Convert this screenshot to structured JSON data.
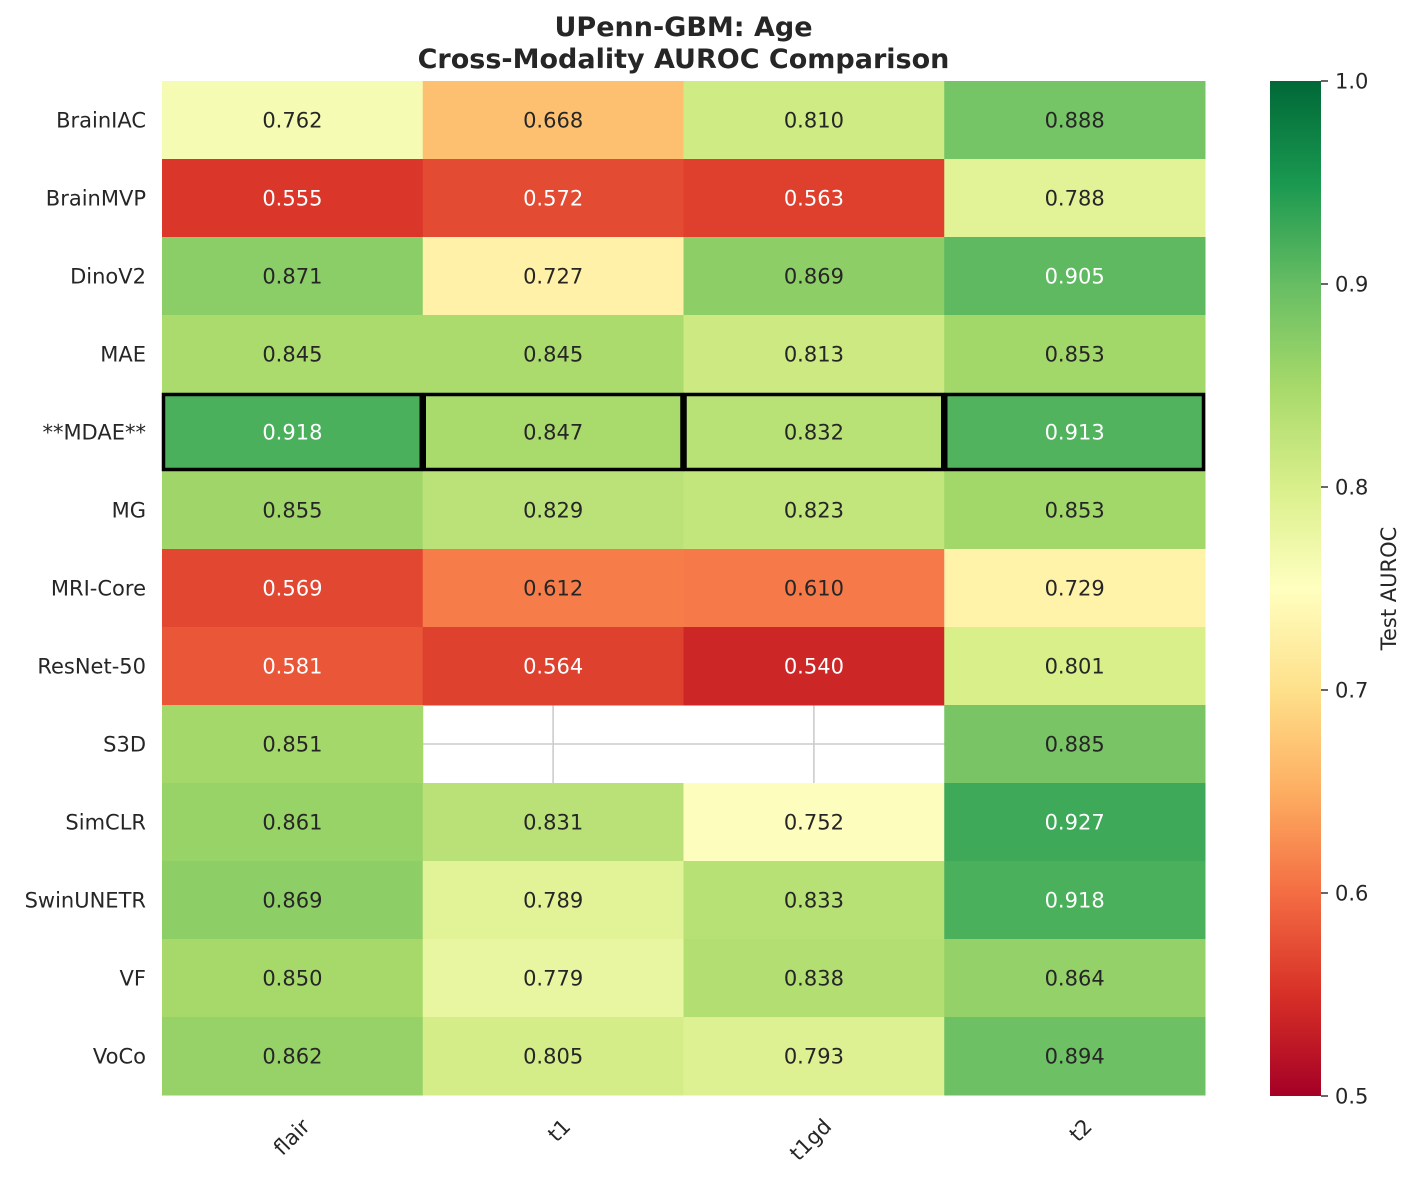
{
  "chart_data": {
    "type": "heatmap",
    "title_lines": [
      "UPenn-GBM: Age",
      "Cross-Modality AUROC Comparison"
    ],
    "rows": [
      "BrainIAC",
      "BrainMVP",
      "DinoV2",
      "MAE",
      "**MDAE**",
      "MG",
      "MRI-Core",
      "ResNet-50",
      "S3D",
      "SimCLR",
      "SwinUNETR",
      "VF",
      "VoCo"
    ],
    "columns": [
      "flair",
      "t1",
      "t1gd",
      "t2"
    ],
    "values": [
      [
        0.762,
        0.668,
        0.81,
        0.888
      ],
      [
        0.555,
        0.572,
        0.563,
        0.788
      ],
      [
        0.871,
        0.727,
        0.869,
        0.905
      ],
      [
        0.845,
        0.845,
        0.813,
        0.853
      ],
      [
        0.918,
        0.847,
        0.832,
        0.913
      ],
      [
        0.855,
        0.829,
        0.823,
        0.853
      ],
      [
        0.569,
        0.612,
        0.61,
        0.729
      ],
      [
        0.581,
        0.564,
        0.54,
        0.801
      ],
      [
        0.851,
        null,
        null,
        0.885
      ],
      [
        0.861,
        0.831,
        0.752,
        0.927
      ],
      [
        0.869,
        0.789,
        0.833,
        0.918
      ],
      [
        0.85,
        0.779,
        0.838,
        0.864
      ],
      [
        0.862,
        0.805,
        0.793,
        0.894
      ]
    ],
    "value_format": "0.000",
    "highlighted_row": "**MDAE**",
    "colormap": "RdYlGn",
    "colorbar": {
      "label": "Test AUROC",
      "range": [
        0.5,
        1.0
      ],
      "ticks": [
        "0.5",
        "0.6",
        "0.7",
        "0.8",
        "0.9",
        "1.0"
      ]
    },
    "grid": true,
    "xtick_rotation": 45
  }
}
